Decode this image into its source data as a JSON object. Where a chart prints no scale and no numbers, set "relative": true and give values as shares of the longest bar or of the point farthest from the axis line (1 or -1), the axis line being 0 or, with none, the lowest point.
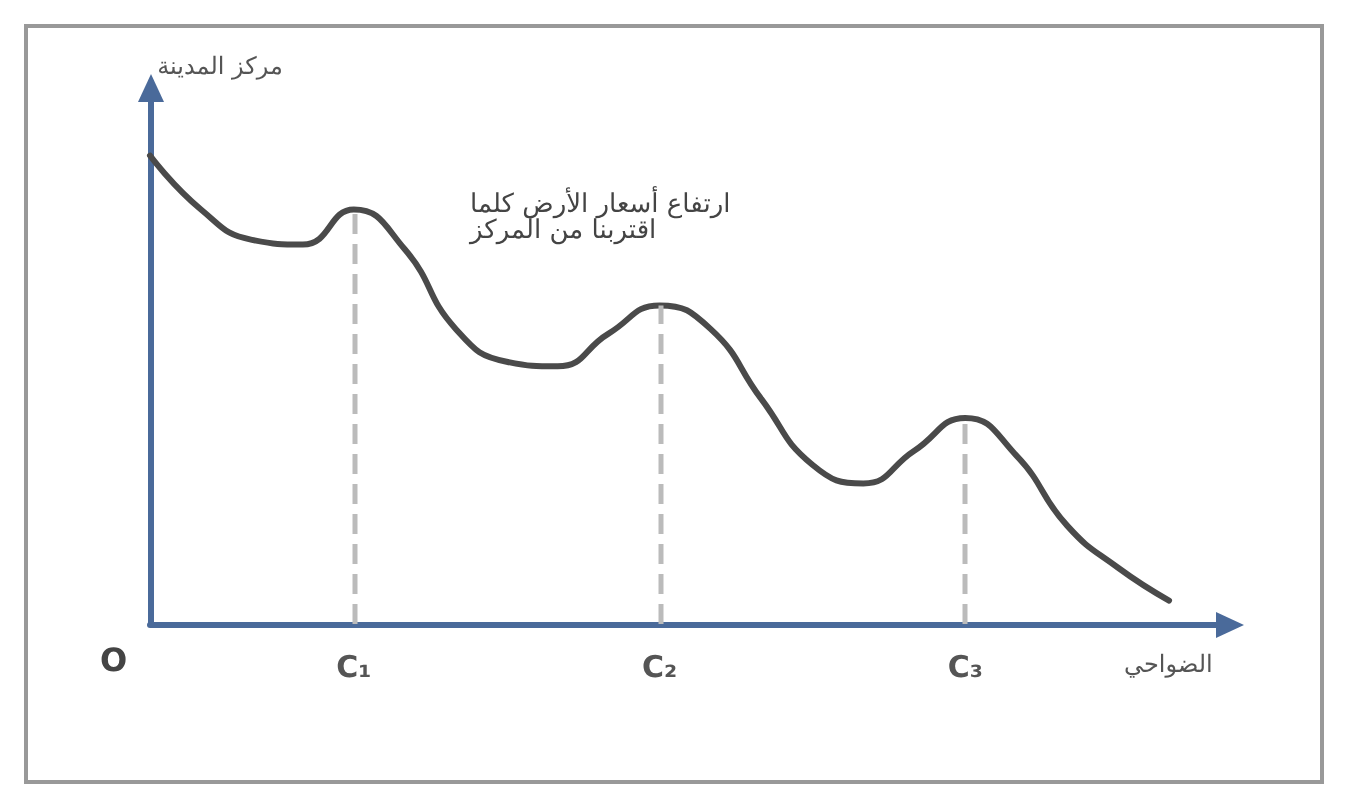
{
  "chart_data": {
    "type": "line",
    "relative": true,
    "xlabel": "الضواحي",
    "ylabel": "مركز المدينة",
    "categories": [
      null,
      null,
      null,
      null,
      "C₁",
      null,
      null,
      null,
      null,
      null,
      "C₂",
      null,
      null,
      null,
      null,
      null,
      "C₃",
      null,
      null,
      null,
      null,
      null
    ],
    "series": [
      {
        "color": "#4a4a4a",
        "values": [
          1.0,
          0.885,
          0.82,
          0.81,
          0.885,
          0.8,
          0.63,
          0.56,
          0.55,
          0.62,
          0.68,
          0.63,
          0.48,
          0.34,
          0.3,
          0.37,
          0.44,
          0.36,
          0.21,
          0.12,
          0.05,
          null
        ]
      }
    ],
    "ref_lines": [
      {
        "axis": "x",
        "value": "C₁",
        "color": "#bbbbbb",
        "line_style": "dashed"
      },
      {
        "axis": "x",
        "value": "C₂",
        "color": "#bbbbbb",
        "line_style": "dashed"
      },
      {
        "axis": "x",
        "value": "C₃",
        "color": "#bbbbbb",
        "line_style": "dashed"
      }
    ],
    "annotations": [
      "ارتفاع أسعار الأرض كلما\nاقتربنا من المركز",
      "O"
    ],
    "marker": "none"
  }
}
